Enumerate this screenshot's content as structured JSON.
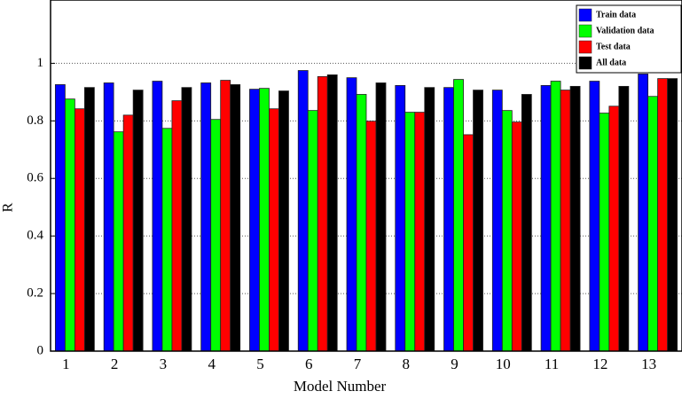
{
  "chart_data": {
    "type": "bar",
    "x_label": "Model Number",
    "y_label": "R",
    "categories": [
      "1",
      "2",
      "3",
      "4",
      "5",
      "6",
      "7",
      "8",
      "9",
      "10",
      "11",
      "12",
      "13"
    ],
    "series": [
      {
        "name": "Train data",
        "color": "#0000ff",
        "values": [
          0.926,
          0.932,
          0.938,
          0.932,
          0.91,
          0.975,
          0.95,
          0.923,
          0.916,
          0.907,
          0.923,
          0.938,
          0.963
        ]
      },
      {
        "name": "Validation data",
        "color": "#00ff00",
        "values": [
          0.876,
          0.762,
          0.774,
          0.805,
          0.913,
          0.836,
          0.892,
          0.83,
          0.944,
          0.836,
          0.938,
          0.827,
          0.885
        ]
      },
      {
        "name": "Test data",
        "color": "#ff0000",
        "values": [
          0.842,
          0.82,
          0.87,
          0.941,
          0.842,
          0.954,
          0.799,
          0.83,
          0.752,
          0.796,
          0.907,
          0.851,
          0.947
        ]
      },
      {
        "name": "All data",
        "color": "#000000",
        "values": [
          0.916,
          0.907,
          0.916,
          0.926,
          0.904,
          0.96,
          0.932,
          0.916,
          0.907,
          0.892,
          0.92,
          0.92,
          0.947
        ]
      }
    ],
    "ylim": [
      0,
      1.22
    ],
    "yticks": [
      0,
      0.2,
      0.4,
      0.6,
      0.8,
      1
    ],
    "grid": true,
    "legend": "top-right"
  }
}
